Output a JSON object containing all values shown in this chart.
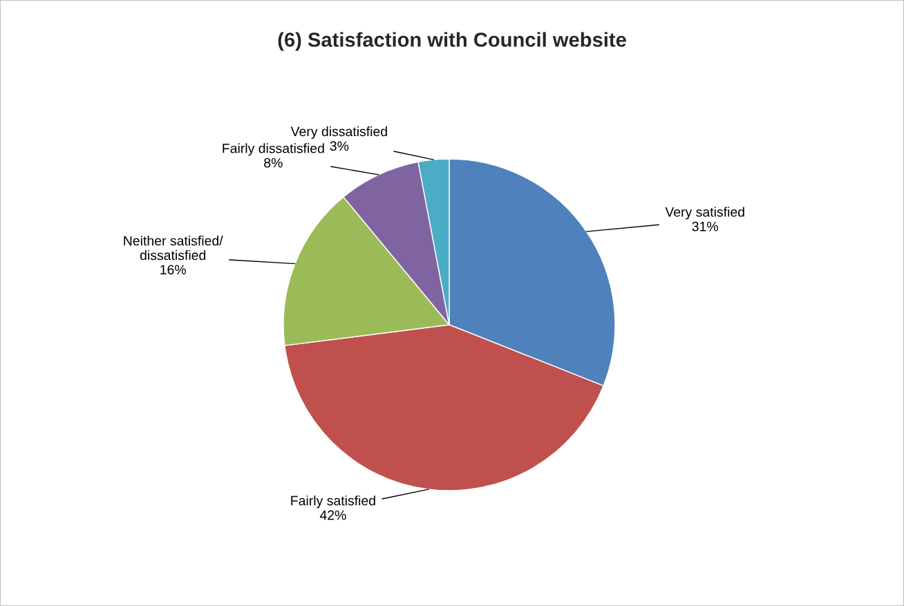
{
  "chart_data": {
    "type": "pie",
    "title": "(6) Satisfaction with Council website",
    "categories": [
      "Very satisfied",
      "Fairly satisfied",
      "Neither satisfied/\ndissatisfied",
      "Fairly dissatisfied",
      "Very dissatisfied"
    ],
    "values": [
      31,
      42,
      16,
      8,
      3
    ],
    "value_labels": [
      "31%",
      "42%",
      "16%",
      "8%",
      "3%"
    ],
    "colors": [
      "#4f81bd",
      "#c0504d",
      "#9bbb59",
      "#8064a2",
      "#4bacc6"
    ],
    "legend": false
  }
}
